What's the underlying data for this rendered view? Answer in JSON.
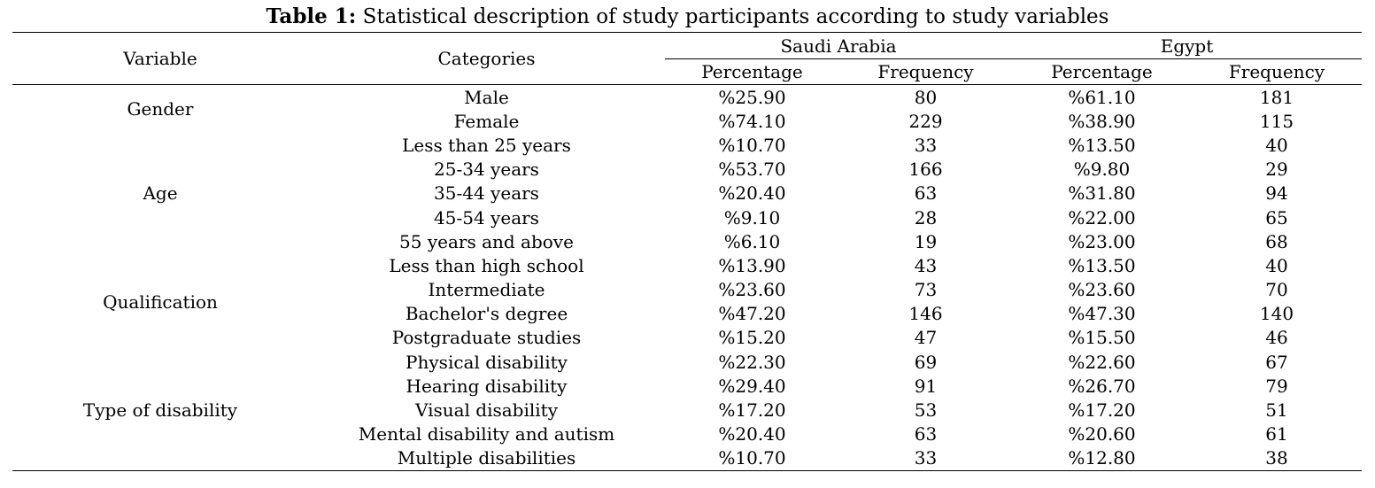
{
  "caption": {
    "label": "Table 1:",
    "text": "Statistical description of study participants according to study variables"
  },
  "headers": {
    "variable": "Variable",
    "categories": "Categories",
    "group1": "Saudi Arabia",
    "group2": "Egypt",
    "percentage": "Percentage",
    "frequency": "Frequency"
  },
  "groups": [
    {
      "variable": "Gender",
      "rows": [
        {
          "category": "Male",
          "sa_pct": "%25.90",
          "sa_freq": "80",
          "eg_pct": "%61.10",
          "eg_freq": "181"
        },
        {
          "category": "Female",
          "sa_pct": "%74.10",
          "sa_freq": "229",
          "eg_pct": "%38.90",
          "eg_freq": "115"
        }
      ]
    },
    {
      "variable": "Age",
      "rows": [
        {
          "category": "Less than 25 years",
          "sa_pct": "%10.70",
          "sa_freq": "33",
          "eg_pct": "%13.50",
          "eg_freq": "40"
        },
        {
          "category": "25-34 years",
          "sa_pct": "%53.70",
          "sa_freq": "166",
          "eg_pct": "%9.80",
          "eg_freq": "29"
        },
        {
          "category": "35-44 years",
          "sa_pct": "%20.40",
          "sa_freq": "63",
          "eg_pct": "%31.80",
          "eg_freq": "94"
        },
        {
          "category": "45-54 years",
          "sa_pct": "%9.10",
          "sa_freq": "28",
          "eg_pct": "%22.00",
          "eg_freq": "65"
        },
        {
          "category": "55 years and above",
          "sa_pct": "%6.10",
          "sa_freq": "19",
          "eg_pct": "%23.00",
          "eg_freq": "68"
        }
      ]
    },
    {
      "variable": "Qualification",
      "rows": [
        {
          "category": "Less than high school",
          "sa_pct": "%13.90",
          "sa_freq": "43",
          "eg_pct": "%13.50",
          "eg_freq": "40"
        },
        {
          "category": "Intermediate",
          "sa_pct": "%23.60",
          "sa_freq": "73",
          "eg_pct": "%23.60",
          "eg_freq": "70"
        },
        {
          "category": "Bachelor's degree",
          "sa_pct": "%47.20",
          "sa_freq": "146",
          "eg_pct": "%47.30",
          "eg_freq": "140"
        },
        {
          "category": "Postgraduate studies",
          "sa_pct": "%15.20",
          "sa_freq": "47",
          "eg_pct": "%15.50",
          "eg_freq": "46"
        }
      ]
    },
    {
      "variable": "Type of disability",
      "rows": [
        {
          "category": "Physical disability",
          "sa_pct": "%22.30",
          "sa_freq": "69",
          "eg_pct": "%22.60",
          "eg_freq": "67"
        },
        {
          "category": "Hearing disability",
          "sa_pct": "%29.40",
          "sa_freq": "91",
          "eg_pct": "%26.70",
          "eg_freq": "79"
        },
        {
          "category": "Visual disability",
          "sa_pct": "%17.20",
          "sa_freq": "53",
          "eg_pct": "%17.20",
          "eg_freq": "51"
        },
        {
          "category": "Mental disability and autism",
          "sa_pct": "%20.40",
          "sa_freq": "63",
          "eg_pct": "%20.60",
          "eg_freq": "61"
        },
        {
          "category": "Multiple disabilities",
          "sa_pct": "%10.70",
          "sa_freq": "33",
          "eg_pct": "%12.80",
          "eg_freq": "38"
        }
      ]
    }
  ]
}
